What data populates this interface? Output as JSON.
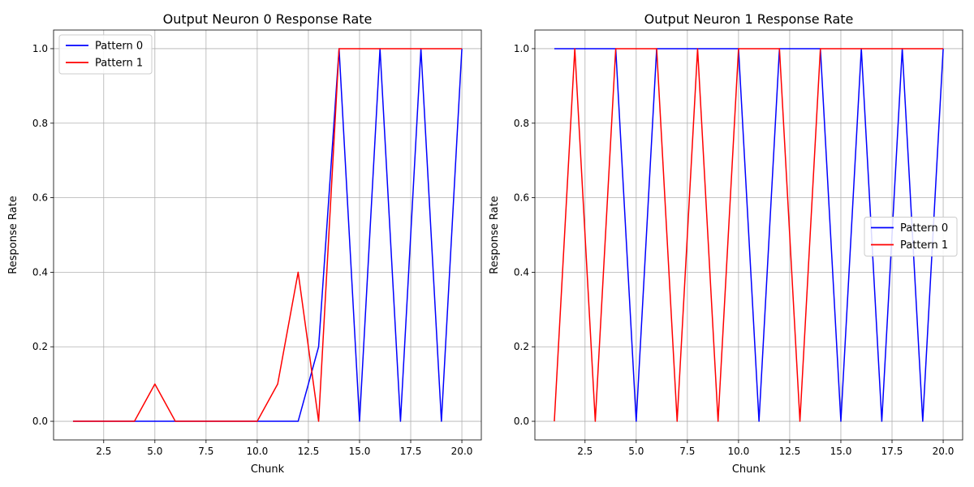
{
  "chart_data": [
    {
      "type": "line",
      "title": "Output Neuron 0 Response Rate",
      "xlabel": "Chunk",
      "ylabel": "Response Rate",
      "xlim": [
        0.05,
        20.95
      ],
      "ylim": [
        -0.05,
        1.05
      ],
      "xticks": [
        2.5,
        5.0,
        7.5,
        10.0,
        12.5,
        15.0,
        17.5,
        20.0
      ],
      "xtick_labels": [
        "2.5",
        "5.0",
        "7.5",
        "10.0",
        "12.5",
        "15.0",
        "17.5",
        "20.0"
      ],
      "yticks": [
        0.0,
        0.2,
        0.4,
        0.6,
        0.8,
        1.0
      ],
      "ytick_labels": [
        "0.0",
        "0.2",
        "0.4",
        "0.6",
        "0.8",
        "1.0"
      ],
      "grid": true,
      "legend": "upper-left",
      "x": [
        1,
        2,
        3,
        4,
        5,
        6,
        7,
        8,
        9,
        10,
        11,
        12,
        13,
        14,
        15,
        16,
        17,
        18,
        19,
        20
      ],
      "series": [
        {
          "name": "Pattern 0",
          "color": "#0000ff",
          "values": [
            0,
            0,
            0,
            0,
            0,
            0,
            0,
            0,
            0,
            0,
            0,
            0,
            0.2,
            1,
            0,
            1,
            0,
            1,
            0,
            1
          ]
        },
        {
          "name": "Pattern 1",
          "color": "#ff0000",
          "values": [
            0,
            0,
            0,
            0,
            0.1,
            0,
            0,
            0,
            0,
            0,
            0.1,
            0.4,
            0,
            1,
            1,
            1,
            1,
            1,
            1,
            1
          ]
        }
      ]
    },
    {
      "type": "line",
      "title": "Output Neuron 1 Response Rate",
      "xlabel": "Chunk",
      "ylabel": "Response Rate",
      "xlim": [
        0.05,
        20.95
      ],
      "ylim": [
        -0.05,
        1.05
      ],
      "xticks": [
        2.5,
        5.0,
        7.5,
        10.0,
        12.5,
        15.0,
        17.5,
        20.0
      ],
      "xtick_labels": [
        "2.5",
        "5.0",
        "7.5",
        "10.0",
        "12.5",
        "15.0",
        "17.5",
        "20.0"
      ],
      "yticks": [
        0.0,
        0.2,
        0.4,
        0.6,
        0.8,
        1.0
      ],
      "ytick_labels": [
        "0.0",
        "0.2",
        "0.4",
        "0.6",
        "0.8",
        "1.0"
      ],
      "grid": true,
      "legend": "center-right",
      "x": [
        1,
        2,
        3,
        4,
        5,
        6,
        7,
        8,
        9,
        10,
        11,
        12,
        13,
        14,
        15,
        16,
        17,
        18,
        19,
        20
      ],
      "series": [
        {
          "name": "Pattern 0",
          "color": "#0000ff",
          "values": [
            1,
            1,
            1,
            1,
            0,
            1,
            1,
            1,
            1,
            1,
            0,
            1,
            1,
            1,
            0,
            1,
            0,
            1,
            0,
            1
          ]
        },
        {
          "name": "Pattern 1",
          "color": "#ff0000",
          "values": [
            0,
            1,
            0,
            1,
            1,
            1,
            0,
            1,
            0,
            1,
            1,
            1,
            0,
            1,
            1,
            1,
            1,
            1,
            1,
            1
          ]
        }
      ]
    }
  ]
}
